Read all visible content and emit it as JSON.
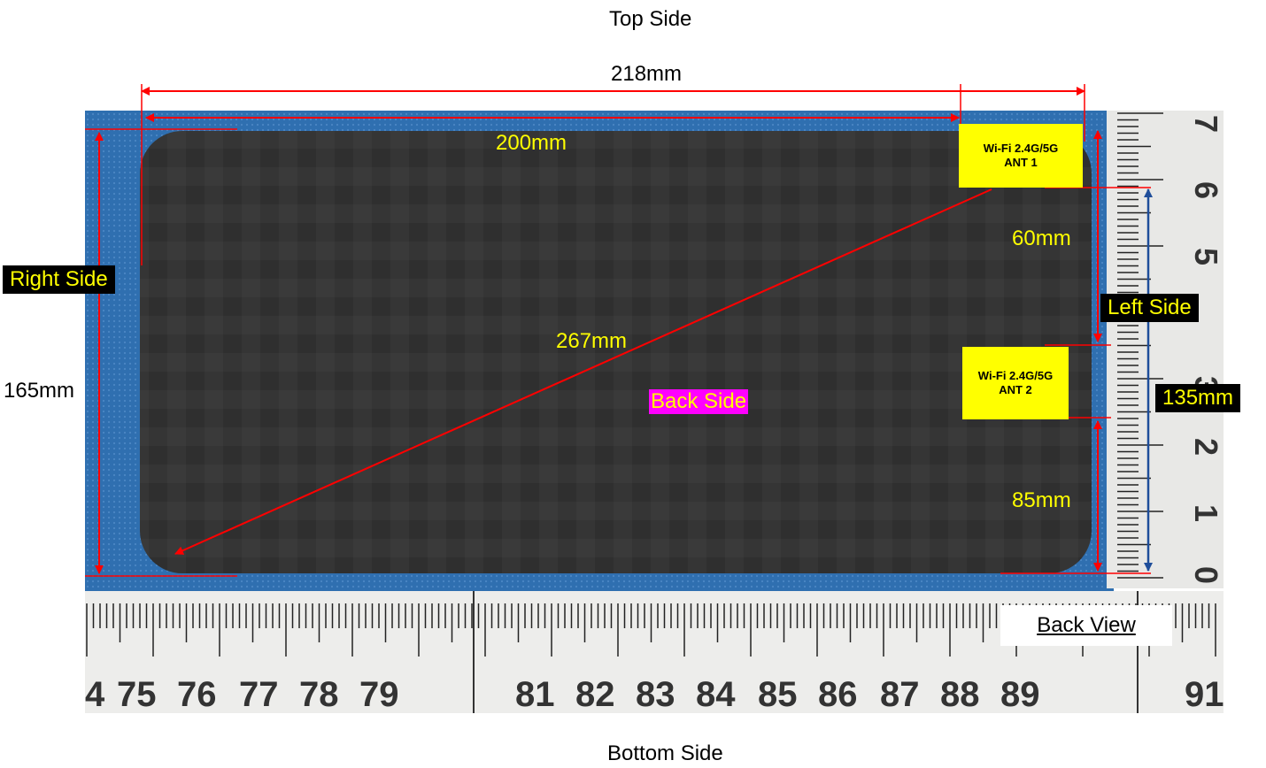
{
  "sides": {
    "top": "Top Side",
    "bottom": "Bottom Side",
    "right": "Right Side",
    "left": "Left Side",
    "back": "Back Side"
  },
  "dimensions": {
    "overall_width": "218mm",
    "inner_width": "200mm",
    "height": "165mm",
    "diagonal": "267mm",
    "ant1_offset_top": "60mm",
    "ant2_offset_bottom": "85mm",
    "ant_spacing": "135mm"
  },
  "antennas": [
    {
      "line1": "Wi-Fi 2.4G/5G",
      "line2": "ANT 1"
    },
    {
      "line1": "Wi-Fi 2.4G/5G",
      "line2": "ANT 2"
    }
  ],
  "view_label": "Back View",
  "ruler_bottom_numbers": [
    "4",
    "75",
    "76",
    "77",
    "78",
    "79",
    "81",
    "82",
    "83",
    "84",
    "85",
    "86",
    "87",
    "88",
    "89",
    "91"
  ],
  "ruler_right_numbers": [
    "7",
    "6",
    "5",
    "3",
    "2",
    "1",
    "0"
  ],
  "colors": {
    "arrow_red": "#ff0000",
    "arrow_blue": "#1f4e9a",
    "label_yellow": "#ffff00",
    "tag_magenta": "#ff00ff",
    "mat_blue": "#2f6fb0",
    "device_dark": "#333333"
  }
}
